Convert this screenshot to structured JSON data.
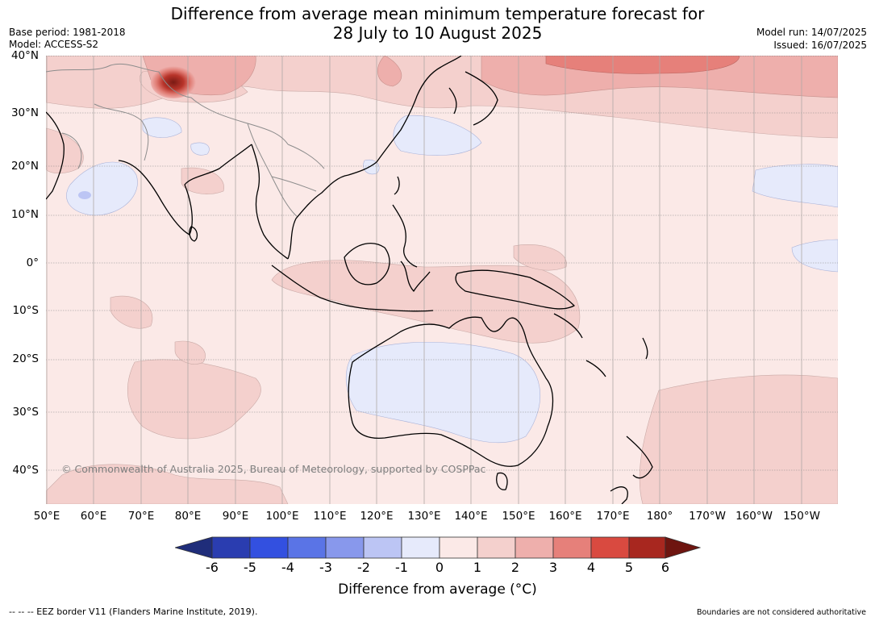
{
  "header": {
    "title_line1": "Difference from average mean minimum temperature forecast for",
    "title_line2": "28 July to 10 August 2025",
    "base_period": "Base period: 1981-2018",
    "model": "Model: ACCESS-S2",
    "model_run": "Model run: 14/07/2025",
    "issued": "Issued: 16/07/2025"
  },
  "map": {
    "lat_labels": [
      "40°N",
      "30°N",
      "20°N",
      "10°N",
      "0°",
      "10°S",
      "20°S",
      "30°S",
      "40°S"
    ],
    "lon_labels": [
      "50°E",
      "60°E",
      "70°E",
      "80°E",
      "90°E",
      "100°E",
      "110°E",
      "120°E",
      "130°E",
      "140°E",
      "150°E",
      "160°E",
      "170°E",
      "180°",
      "170°W",
      "160°W",
      "150°W"
    ],
    "copyright": "© Commonwealth of Australia 2025, Bureau of Meteorology, supported by COSPPac",
    "background_color": "#fbe9e7"
  },
  "colorbar": {
    "tick_labels": [
      "-6",
      "-5",
      "-4",
      "-3",
      "-2",
      "-1",
      "0",
      "1",
      "2",
      "3",
      "4",
      "5",
      "6"
    ],
    "colors": [
      "#1f2d7a",
      "#2a3db0",
      "#3350e0",
      "#5a74e6",
      "#8898ec",
      "#bcc5f4",
      "#e6eafb",
      "#fbe9e7",
      "#f4d0cd",
      "#eeafac",
      "#e6807a",
      "#d94a40",
      "#a8271f",
      "#6e1510"
    ],
    "label": "Difference from average (°C)"
  },
  "footer": {
    "legend_eez": "--  --  -- EEZ border V11 (Flanders Marine Institute, 2019).",
    "disclaimer": "Boundaries are not considered authoritative"
  }
}
